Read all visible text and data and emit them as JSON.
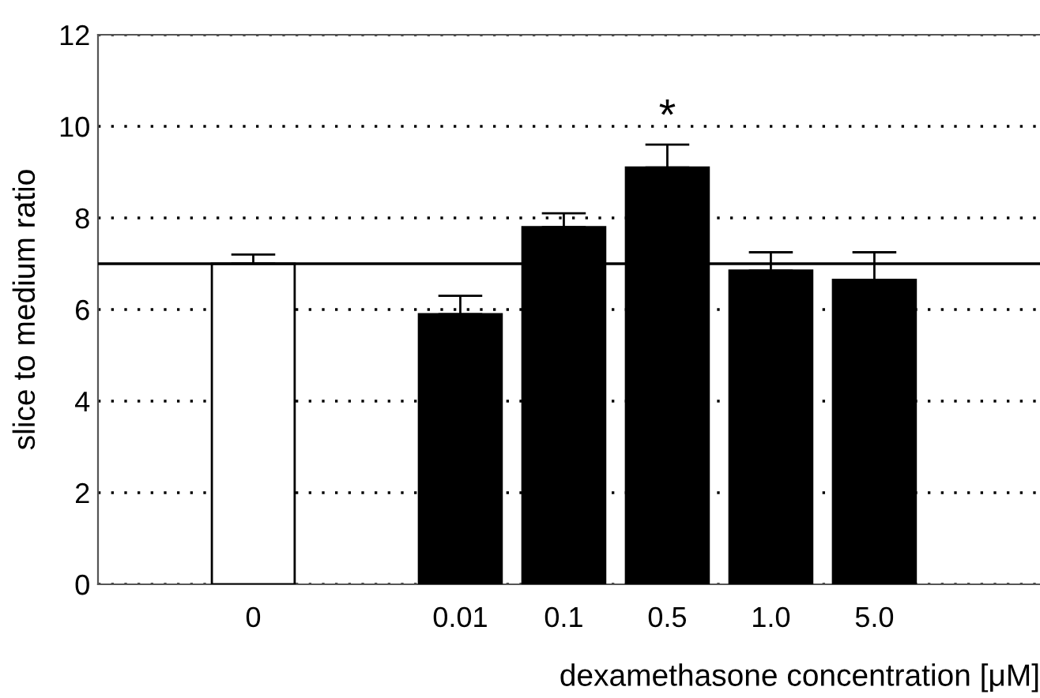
{
  "chart_data": {
    "type": "bar",
    "categories": [
      "0",
      null,
      "0.01",
      "0.1",
      "0.5",
      "1.0",
      "5.0"
    ],
    "values": [
      7.0,
      null,
      5.9,
      7.8,
      9.1,
      6.85,
      6.65
    ],
    "colors": [
      "#ffffff",
      "#000000",
      "#000000",
      "#000000",
      "#000000",
      "#000000",
      "#000000"
    ],
    "errors": [
      [
        7.0,
        7.2
      ],
      null,
      [
        5.9,
        6.3
      ],
      [
        7.8,
        8.1
      ],
      [
        9.1,
        9.6
      ],
      [
        6.85,
        7.25
      ],
      [
        6.65,
        7.25
      ]
    ],
    "xlabel": "dexamethasone concentration [μM]",
    "ylabel": "slice to medium ratio",
    "ylim": [
      0,
      12
    ],
    "yticks": [
      0,
      2,
      4,
      6,
      8,
      10,
      12
    ],
    "grid": "y",
    "ref_lines": [
      {
        "axis": "y",
        "value": 7.0,
        "color": "#000000",
        "line_style": "solid"
      }
    ],
    "annotations": [
      {
        "text": "*",
        "x": "0.5",
        "y": 9.6
      }
    ]
  }
}
